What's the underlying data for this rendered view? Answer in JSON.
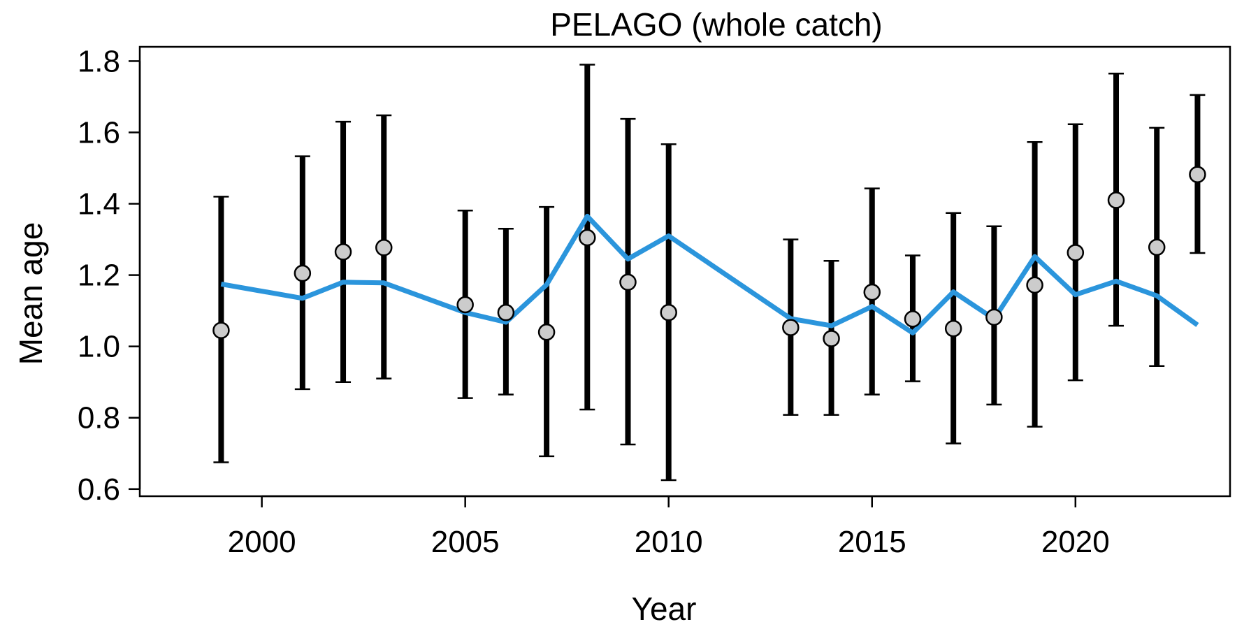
{
  "chart_data": {
    "type": "line",
    "title": "PELAGO (whole catch)",
    "xlabel": "Year",
    "ylabel": "Mean age",
    "xlim": [
      1997.0,
      2023.8
    ],
    "ylim": [
      0.58,
      1.84
    ],
    "x_ticks": [
      2000,
      2005,
      2010,
      2015,
      2020
    ],
    "x_tick_labels": [
      "2000",
      "2005",
      "2010",
      "2015",
      "2020"
    ],
    "y_ticks": [
      0.6,
      0.8,
      1.0,
      1.2,
      1.4,
      1.6,
      1.8
    ],
    "y_tick_labels": [
      "0.6",
      "0.8",
      "1.0",
      "1.2",
      "1.4",
      "1.6",
      "1.8"
    ],
    "grid": false,
    "colors": {
      "line": "#2b95dc",
      "points": "#cccccc",
      "errorbars": "#000000"
    },
    "series": [
      {
        "kind": "points_with_error_bars",
        "x": [
          1999,
          2001,
          2002,
          2003,
          2005,
          2006,
          2007,
          2008,
          2009,
          2010,
          2013,
          2014,
          2015,
          2016,
          2017,
          2018,
          2019,
          2020,
          2021,
          2022,
          2023
        ],
        "y": [
          1.045,
          1.205,
          1.265,
          1.277,
          1.117,
          1.095,
          1.04,
          1.305,
          1.18,
          1.095,
          1.053,
          1.022,
          1.152,
          1.077,
          1.05,
          1.082,
          1.172,
          1.263,
          1.41,
          1.278,
          1.482
        ],
        "lower": [
          0.675,
          0.88,
          0.9,
          0.91,
          0.855,
          0.865,
          0.692,
          0.823,
          0.725,
          0.625,
          0.808,
          0.808,
          0.865,
          0.902,
          0.728,
          0.837,
          0.775,
          0.905,
          1.058,
          0.945,
          1.262
        ],
        "upper": [
          1.42,
          1.533,
          1.63,
          1.648,
          1.381,
          1.33,
          1.391,
          1.79,
          1.638,
          1.567,
          1.3,
          1.24,
          1.443,
          1.255,
          1.374,
          1.337,
          1.573,
          1.623,
          1.765,
          1.613,
          1.705
        ]
      },
      {
        "kind": "line",
        "x": [
          1999,
          2001,
          2002,
          2003,
          2005,
          2006,
          2007,
          2008,
          2009,
          2010,
          2013,
          2014,
          2015,
          2016,
          2017,
          2018,
          2019,
          2020,
          2021,
          2022,
          2023
        ],
        "y": [
          1.175,
          1.135,
          1.18,
          1.178,
          1.095,
          1.068,
          1.173,
          1.365,
          1.245,
          1.31,
          1.078,
          1.058,
          1.112,
          1.038,
          1.153,
          1.077,
          1.252,
          1.145,
          1.183,
          1.142,
          1.06
        ]
      }
    ]
  }
}
